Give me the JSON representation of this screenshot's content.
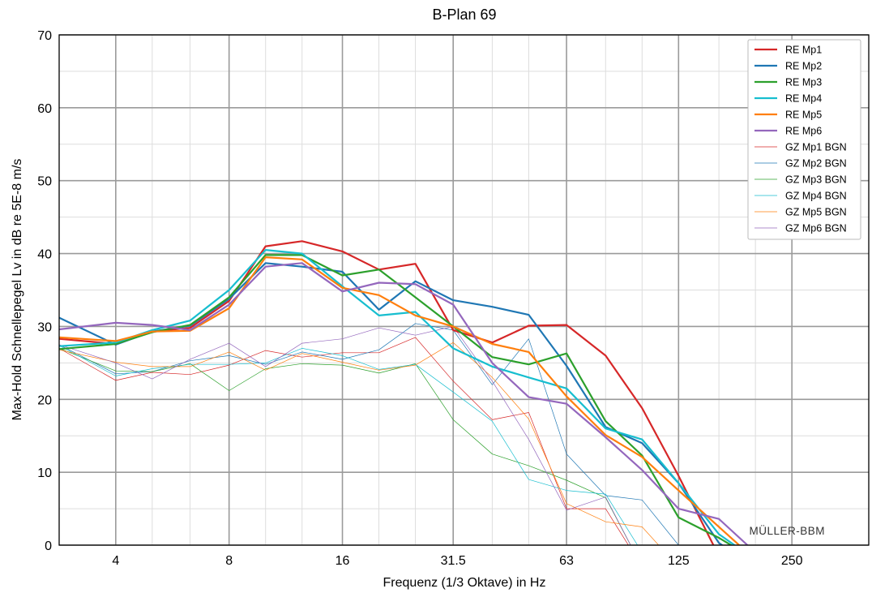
{
  "chart_data": {
    "type": "line",
    "title": "B-Plan 69",
    "xlabel": "Frequenz (1/3 Oktave) in Hz",
    "ylabel": "Max-Hold Schnellepegel Lv in dB re 5E-8 m/s",
    "xscale": "log2",
    "xlim": [
      2.83,
      400
    ],
    "ylim": [
      0,
      70
    ],
    "x_ticks": [
      {
        "value": 4,
        "label": "4"
      },
      {
        "value": 8,
        "label": "8"
      },
      {
        "value": 16,
        "label": "16"
      },
      {
        "value": 31.5,
        "label": "31.5"
      },
      {
        "value": 63,
        "label": "63"
      },
      {
        "value": 125,
        "label": "125"
      },
      {
        "value": 250,
        "label": "250"
      }
    ],
    "y_ticks": [
      0,
      10,
      20,
      30,
      40,
      50,
      60,
      70
    ],
    "grid": true,
    "legend_position": "top-right",
    "watermark": "MÜLLER-BBM",
    "x": [
      2.83,
      4,
      5,
      6.3,
      8,
      10,
      12.5,
      16,
      20,
      25,
      31.5,
      40,
      50,
      63,
      80,
      100,
      125,
      160,
      200
    ],
    "series": [
      {
        "name": "RE Mp1",
        "color": "#d62728",
        "width": 2.2,
        "values": [
          28.3,
          27.6,
          29.3,
          29.8,
          33.5,
          41.0,
          41.7,
          40.3,
          37.8,
          38.6,
          29.5,
          27.8,
          30.1,
          30.2,
          26.0,
          18.8,
          9.5,
          -1.5,
          -3.0
        ]
      },
      {
        "name": "RE Mp2",
        "color": "#1f77b4",
        "width": 2.2,
        "values": [
          31.2,
          27.5,
          29.3,
          30.1,
          33.8,
          38.7,
          38.2,
          37.5,
          32.3,
          36.2,
          33.6,
          32.7,
          31.6,
          24.6,
          16.2,
          14.0,
          8.5,
          0.3,
          -3.0
        ]
      },
      {
        "name": "RE Mp3",
        "color": "#2ca02c",
        "width": 2.2,
        "values": [
          26.9,
          27.6,
          29.2,
          30.2,
          34.0,
          39.8,
          39.8,
          37.0,
          37.8,
          34.0,
          30.0,
          25.8,
          24.8,
          26.3,
          17.0,
          12.3,
          3.8,
          1.0,
          -2.0
        ]
      },
      {
        "name": "RE Mp4",
        "color": "#17becf",
        "width": 2.2,
        "values": [
          27.3,
          27.8,
          29.5,
          30.8,
          35.0,
          40.5,
          40.0,
          35.5,
          31.5,
          32.0,
          27.0,
          24.5,
          23.0,
          21.5,
          16.0,
          14.5,
          8.5,
          1.5,
          -2.0
        ]
      },
      {
        "name": "RE Mp5",
        "color": "#ff7f0e",
        "width": 2.2,
        "values": [
          28.5,
          28.0,
          29.3,
          29.4,
          32.5,
          39.5,
          39.2,
          35.3,
          34.3,
          31.5,
          30.0,
          27.6,
          26.5,
          20.4,
          15.1,
          12.1,
          7.5,
          2.5,
          -2.0
        ]
      },
      {
        "name": "RE Mp6",
        "color": "#9467bd",
        "width": 2.2,
        "values": [
          29.6,
          30.5,
          30.2,
          29.5,
          33.0,
          38.2,
          38.7,
          34.8,
          36.0,
          35.8,
          33.0,
          25.0,
          20.3,
          19.4,
          14.8,
          10.3,
          5.0,
          3.6,
          -1.0
        ]
      },
      {
        "name": "GZ Mp1 BGN",
        "color": "#d62728",
        "width": 0.7,
        "values": [
          27.0,
          22.6,
          23.7,
          23.4,
          24.7,
          26.7,
          25.8,
          26.4,
          26.4,
          28.5,
          22.5,
          17.2,
          18.2,
          5.0,
          5.0,
          -3.0,
          -3.0,
          -3.0,
          -3.0
        ]
      },
      {
        "name": "GZ Mp2 BGN",
        "color": "#1f77b4",
        "width": 0.7,
        "values": [
          27.5,
          23.5,
          23.8,
          25.3,
          26.0,
          24.8,
          26.5,
          25.5,
          26.8,
          30.4,
          29.5,
          22.0,
          28.3,
          12.5,
          6.8,
          6.2,
          0.0,
          -3.0,
          -3.0
        ]
      },
      {
        "name": "GZ Mp3 BGN",
        "color": "#2ca02c",
        "width": 0.7,
        "values": [
          27.0,
          23.9,
          23.8,
          24.9,
          21.2,
          24.2,
          24.9,
          24.7,
          23.6,
          24.9,
          17.2,
          12.5,
          10.9,
          8.9,
          6.5,
          -3.0,
          -3.0,
          -3.0,
          -3.0
        ]
      },
      {
        "name": "GZ Mp4 BGN",
        "color": "#17becf",
        "width": 0.7,
        "values": [
          27.4,
          23.2,
          24.2,
          24.8,
          24.8,
          25.0,
          27.0,
          26.0,
          24.1,
          24.8,
          21.0,
          17.0,
          9.0,
          7.5,
          7.0,
          -1.0,
          -3.0,
          -3.0,
          -3.0
        ]
      },
      {
        "name": "GZ Mp5 BGN",
        "color": "#ff7f0e",
        "width": 0.7,
        "values": [
          26.8,
          25.1,
          24.5,
          24.5,
          26.5,
          24.0,
          26.3,
          25.1,
          24.0,
          24.7,
          27.8,
          23.0,
          17.3,
          5.7,
          3.2,
          2.5,
          -3.0,
          -3.0,
          -3.0
        ]
      },
      {
        "name": "GZ Mp6 BGN",
        "color": "#9467bd",
        "width": 0.7,
        "values": [
          27.5,
          25.0,
          22.8,
          25.5,
          27.7,
          24.5,
          27.7,
          28.3,
          29.8,
          28.8,
          30.0,
          22.5,
          14.5,
          4.8,
          6.6,
          -3.0,
          -3.0,
          -3.0,
          -3.0
        ]
      }
    ]
  }
}
